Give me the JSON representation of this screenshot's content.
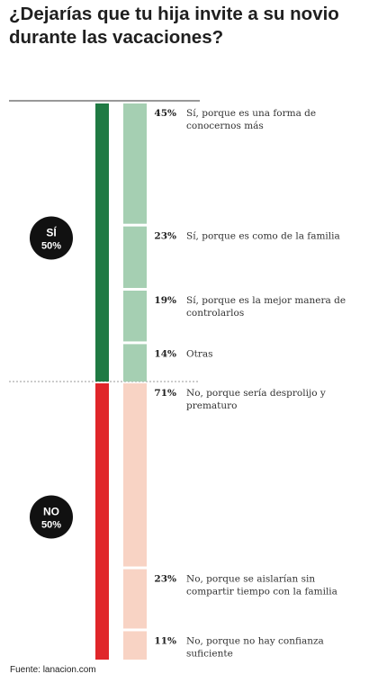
{
  "title": "¿Dejarías que tu hija invite a su novio durante las vacaciones?",
  "source": "Fuente: lanacion.com",
  "chart_data": {
    "type": "bar",
    "orientation": "vertical-stacked",
    "groups": [
      {
        "name": "SÍ",
        "share_label": "50%",
        "share": 50,
        "color": "#1f7a43",
        "segment_color": "#a5cfb2",
        "items": [
          {
            "value": 45,
            "label_text": "45%",
            "text": "Sí, porque es una forma de conocernos más"
          },
          {
            "value": 23,
            "label_text": "23%",
            "text": "Sí, porque es como de la familia"
          },
          {
            "value": 19,
            "label_text": "19%",
            "text": "Sí, porque es la mejor manera de controlarlos"
          },
          {
            "value": 14,
            "label_text": "14%",
            "text": "Otras"
          }
        ]
      },
      {
        "name": "NO",
        "share_label": "50%",
        "share": 50,
        "color": "#e0262a",
        "segment_color": "#f8d3c4",
        "items": [
          {
            "value": 71,
            "label_text": "71%",
            "text": "No, porque sería desprolijo y prematuro"
          },
          {
            "value": 23,
            "label_text": "23%",
            "text": "No, porque se aislarían sin compartir tiempo con la familia"
          },
          {
            "value": 11,
            "label_text": "11%",
            "text": "No, porque no hay confianza suficiente"
          }
        ]
      }
    ]
  }
}
